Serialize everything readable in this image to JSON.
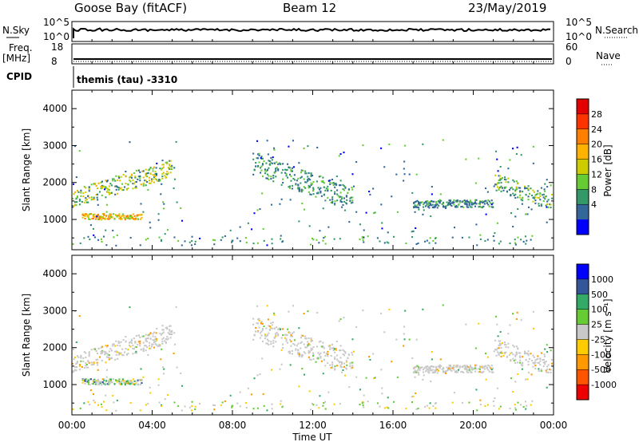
{
  "header": {
    "station": "Goose Bay (fitACF)",
    "beam": "Beam 12",
    "date": "23/May/2019"
  },
  "aux": {
    "nsky_label": "N.Sky",
    "nsearch_label": "N.Search",
    "pow_ticks": [
      "10^5",
      "10^0"
    ],
    "freq_label": "Freq.",
    "freq_unit": "[MHz]",
    "freq_ticks": [
      "18",
      "8"
    ],
    "nave_label": "Nave",
    "nave_ticks": [
      "60",
      "0"
    ],
    "cpid_label": "CPID",
    "cpid_value": "themis (tau) -3310"
  },
  "power_colorbar": {
    "label": "Power [dB]",
    "ticks": [
      "28",
      "24",
      "20",
      "16",
      "12",
      "8",
      "4"
    ],
    "colors": [
      "#e50000",
      "#ff3300",
      "#ff7f00",
      "#ffb300",
      "#cccc00",
      "#66cc33",
      "#339966",
      "#336699",
      "#0000ff"
    ]
  },
  "velocity_colorbar": {
    "label": "Velocity [m s⁻¹]",
    "ticks": [
      "1000",
      "500",
      "100",
      "25",
      "-25",
      "-100",
      "-500",
      "-1000"
    ],
    "colors": [
      "#0000ff",
      "#335599",
      "#33aa66",
      "#66cc33",
      "#c8c8c8",
      "#ffcc00",
      "#ff9900",
      "#ff5500",
      "#ee0000"
    ]
  },
  "chart_data": [
    {
      "type": "heatmap",
      "title": "Power",
      "ylabel": "Slant Range [km]",
      "yticks": [
        "4000",
        "3000",
        "2000",
        "1000"
      ],
      "ylim": [
        180,
        4500
      ],
      "xlim": [
        0,
        24
      ],
      "bands": [
        {
          "t0": 0.0,
          "t1": 5.0,
          "r0": 1300,
          "r1": 2200,
          "level": "mid-high"
        },
        {
          "t0": 0.5,
          "t1": 3.5,
          "r0": 900,
          "r1": 1200,
          "level": "high"
        },
        {
          "t0": 9.0,
          "t1": 14.0,
          "r0": 1400,
          "r1": 2600,
          "level": "low-mid"
        },
        {
          "t0": 17.0,
          "t1": 21.0,
          "r0": 1200,
          "r1": 1600,
          "level": "low"
        },
        {
          "t0": 21.0,
          "t1": 24.0,
          "r0": 1300,
          "r1": 2200,
          "level": "mid"
        }
      ]
    },
    {
      "type": "heatmap",
      "title": "Velocity",
      "ylabel": "Slant Range [km]",
      "yticks": [
        "4000",
        "3000",
        "2000",
        "1000"
      ],
      "ylim": [
        180,
        4500
      ],
      "xlim": [
        0,
        24
      ],
      "xlabel": "Time UT",
      "xticks": [
        "00:00",
        "04:00",
        "08:00",
        "12:00",
        "16:00",
        "20:00",
        "00:00"
      ]
    }
  ]
}
